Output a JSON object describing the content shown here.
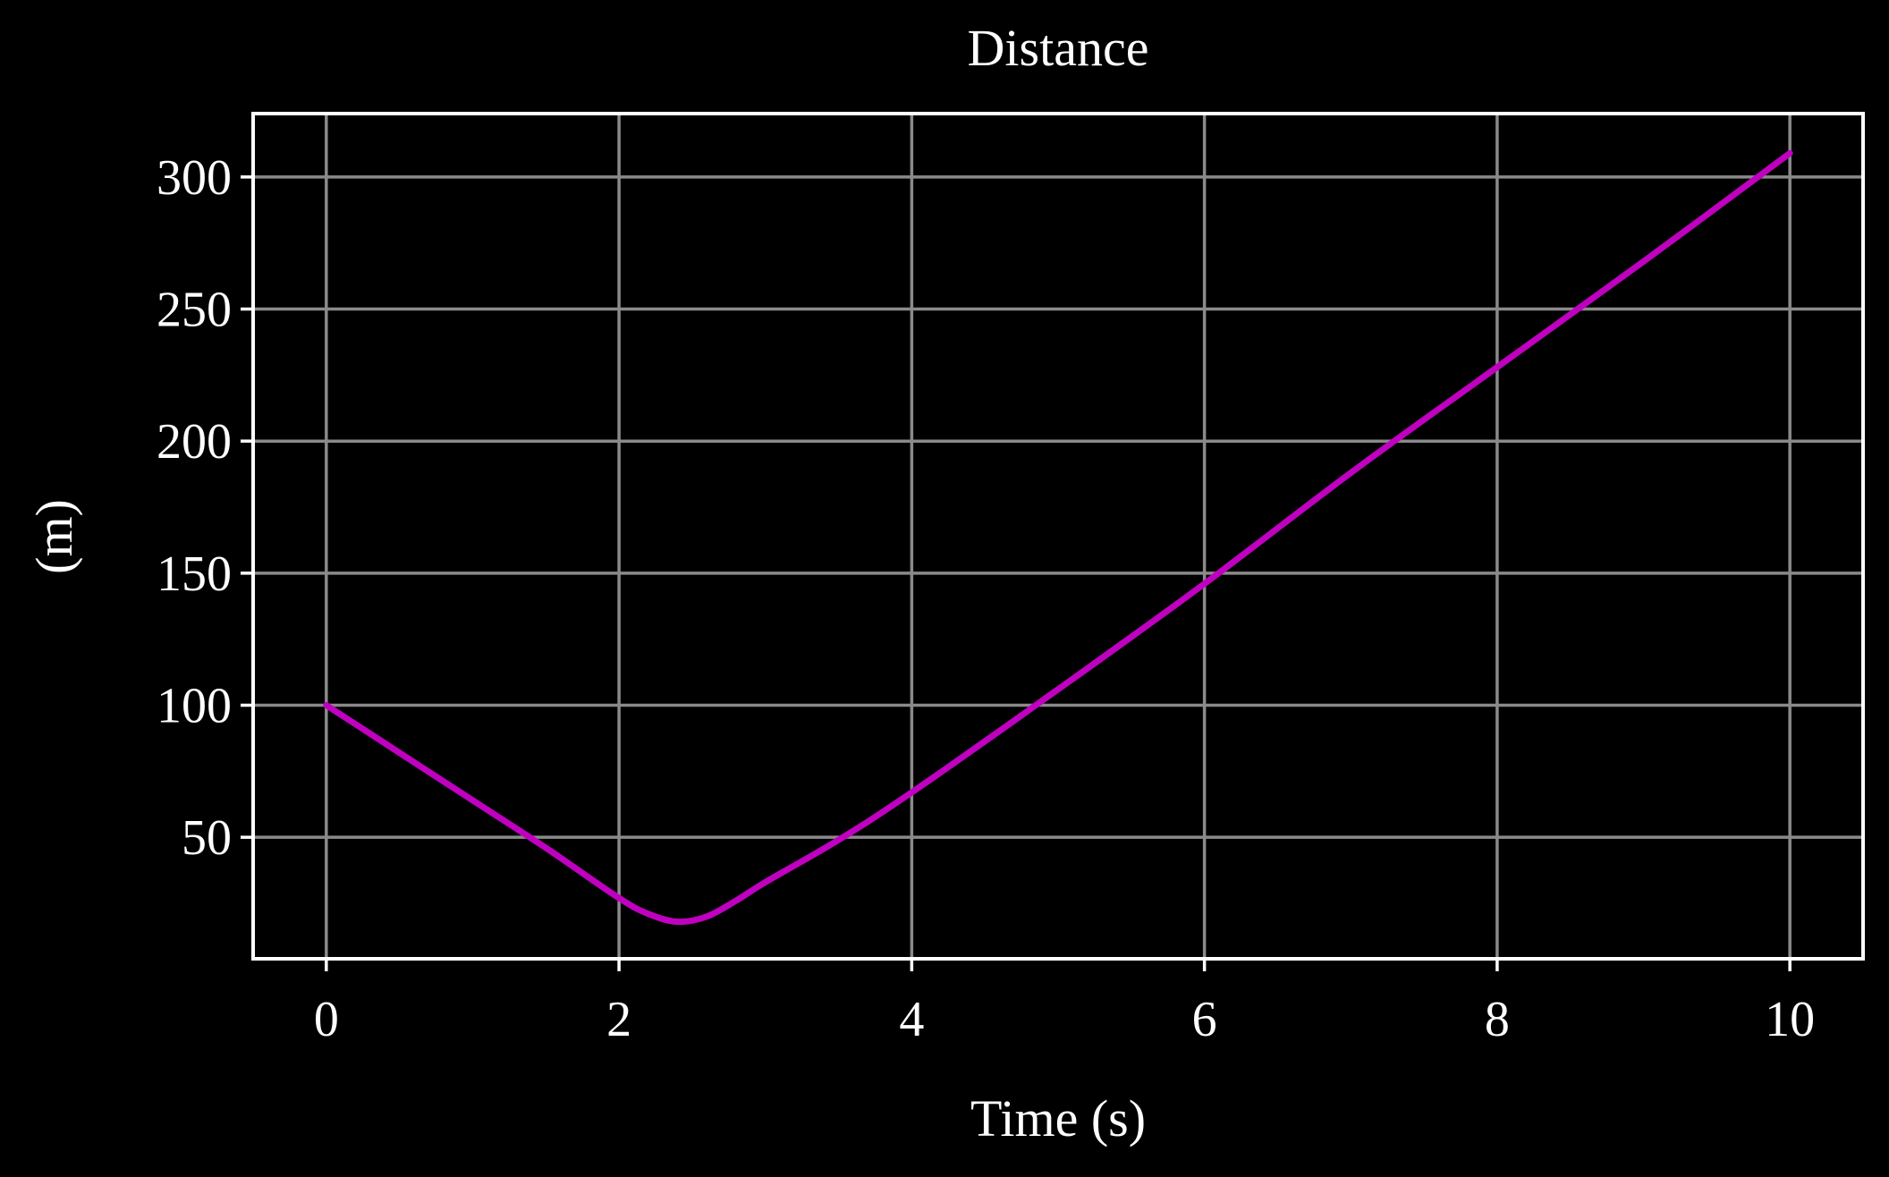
{
  "colors": {
    "background": "#000000",
    "foreground": "#ffffff",
    "grid": "#8a8a8a",
    "series": "#c000c0"
  },
  "chart_data": {
    "type": "line",
    "title": "Distance",
    "xlabel": "Time (s)",
    "ylabel": "(m)",
    "xlim": [
      -0.5,
      10.5
    ],
    "ylim": [
      4,
      324
    ],
    "xticks": [
      0,
      2,
      4,
      6,
      8,
      10
    ],
    "yticks": [
      50,
      100,
      150,
      200,
      250,
      300
    ],
    "grid": true,
    "series": [
      {
        "color": "#c000c0",
        "x": [
          0,
          0.5,
          1.0,
          1.5,
          2.0,
          2.2,
          2.4,
          2.6,
          2.8,
          3.0,
          3.5,
          4.0,
          5.0,
          6.0,
          7.0,
          8.0,
          9.0,
          10.0
        ],
        "y": [
          100,
          82,
          64,
          46,
          27,
          21,
          18,
          20,
          26,
          33,
          49,
          67,
          106,
          146,
          188,
          228,
          268,
          309
        ]
      }
    ]
  }
}
